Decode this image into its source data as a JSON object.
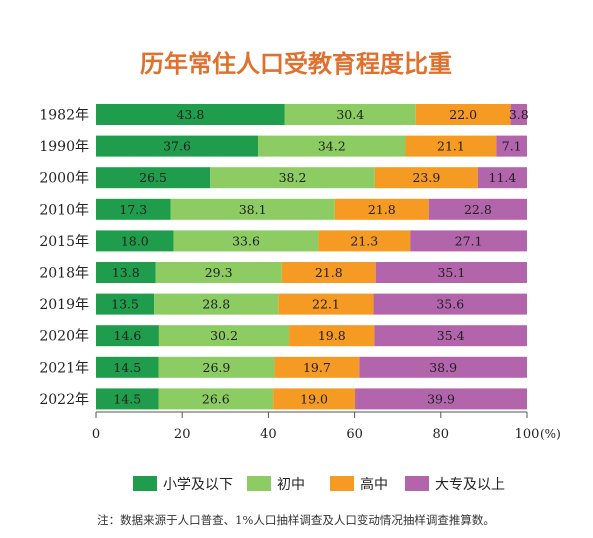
{
  "colors": {
    "title": "#e0702e",
    "primary_below": "#1f9d4c",
    "junior_high": "#8ccc62",
    "senior_high": "#f59a22",
    "college_above": "#b365ac",
    "axis": "#555555"
  },
  "chart_data": {
    "type": "bar",
    "orientation": "horizontal",
    "stacked": true,
    "title": "历年常住人口受教育程度比重",
    "categories": [
      "1982年",
      "1990年",
      "2000年",
      "2010年",
      "2015年",
      "2018年",
      "2019年",
      "2020年",
      "2021年",
      "2022年"
    ],
    "series": [
      {
        "name": "小学及以下",
        "color": "#1f9d4c",
        "values": [
          43.8,
          37.6,
          26.5,
          17.3,
          18.0,
          13.8,
          13.5,
          14.6,
          14.5,
          14.5
        ]
      },
      {
        "name": "初中",
        "color": "#8ccc62",
        "values": [
          30.4,
          34.2,
          38.2,
          38.1,
          33.6,
          29.3,
          28.8,
          30.2,
          26.9,
          26.6
        ]
      },
      {
        "name": "高中",
        "color": "#f59a22",
        "values": [
          22.0,
          21.1,
          23.9,
          21.8,
          21.3,
          21.8,
          22.1,
          19.8,
          19.7,
          19.0
        ]
      },
      {
        "name": "大专及以上",
        "color": "#b365ac",
        "values": [
          3.8,
          7.1,
          11.4,
          22.8,
          27.1,
          35.1,
          35.6,
          35.4,
          38.9,
          39.9
        ]
      }
    ],
    "x_ticks": [
      "0",
      "20",
      "40",
      "60",
      "80",
      "100"
    ],
    "x_unit": "(%)",
    "xlim": [
      0,
      100
    ],
    "grid": false,
    "legend_position": "bottom",
    "note": "注：数据来源于人口普查、1%人口抽样调查及人口变动情况抽样调查推算数。"
  }
}
